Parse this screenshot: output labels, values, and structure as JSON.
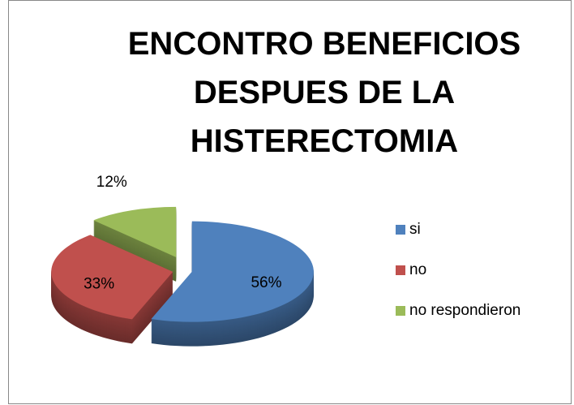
{
  "chart_data": {
    "type": "pie",
    "title": "ENCONTRO BENEFICIOS DESPUES DE LA HISTERECTOMIA",
    "categories": [
      "si",
      "no",
      "no respondieron"
    ],
    "values": [
      56,
      33,
      12
    ],
    "value_labels": [
      "56%",
      "33%",
      "12%"
    ],
    "colors": [
      "#4f81bd",
      "#c0504d",
      "#9bbb59"
    ],
    "legend": "right",
    "three_d": true,
    "exploded": true
  }
}
